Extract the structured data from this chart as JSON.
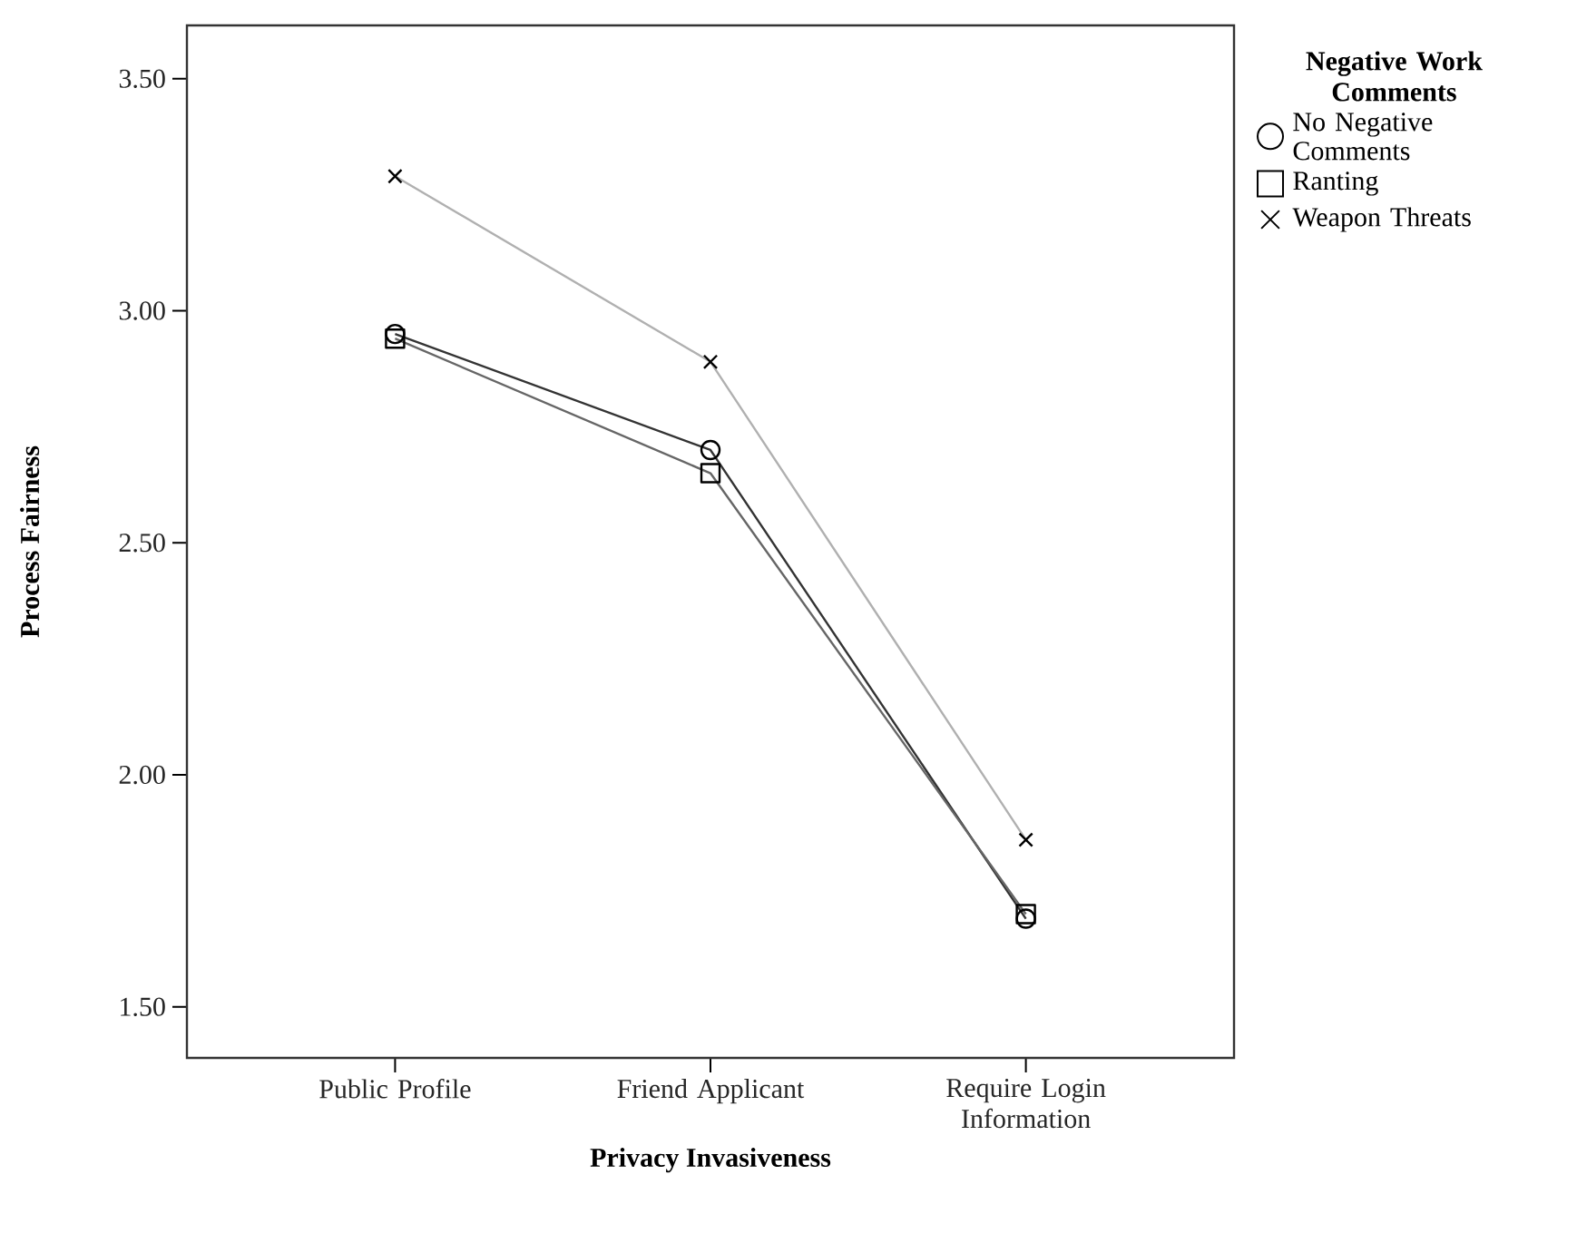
{
  "chart_data": {
    "type": "line",
    "xlabel": "Privacy Invasiveness",
    "ylabel": "Process Fairness",
    "legend_title": "Negative Work Comments",
    "categories": [
      "Public Profile",
      "Friend Applicant",
      "Require Login Information"
    ],
    "series": [
      {
        "name": "No Negative Comments",
        "color": "#333333",
        "marker": "circle",
        "values": [
          2.95,
          2.7,
          1.69
        ]
      },
      {
        "name": "Ranting",
        "color": "#666666",
        "marker": "square",
        "values": [
          2.94,
          2.65,
          1.7
        ]
      },
      {
        "name": "Weapon Threats",
        "color": "#b0b0b0",
        "marker": "cross",
        "values": [
          3.29,
          2.89,
          1.86
        ]
      }
    ],
    "ylim": [
      1.39,
      3.615
    ],
    "yticks": [
      {
        "value": 1.5,
        "label": "1.50"
      },
      {
        "value": 2.0,
        "label": "2.00"
      },
      {
        "value": 2.5,
        "label": "2.50"
      },
      {
        "value": 3.0,
        "label": "3.00"
      },
      {
        "value": 3.5,
        "label": "3.50"
      }
    ],
    "grid": false,
    "legend": "right",
    "line_style": "solid"
  }
}
